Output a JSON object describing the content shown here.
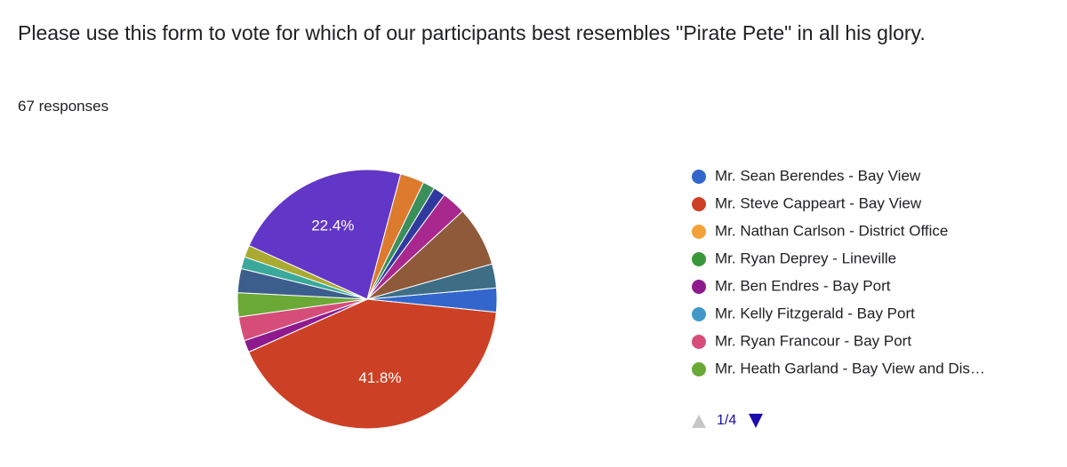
{
  "chart_data": {
    "type": "pie",
    "title": "Please use this form to vote for which of our participants best resembles \"Pirate Pete\" in all his glory.",
    "subtitle": "67 responses",
    "categories": [
      "Mr. Sean Berendes - Bay View",
      "Mr. Steve Cappeart - Bay View",
      "Mr. Nathan Carlson - District Office",
      "Mr. Ryan Deprey - Lineville",
      "Mr. Ben Endres - Bay Port",
      "Mr. Kelly Fitzgerald - Bay Port",
      "Mr. Ryan Francour - Bay Port",
      "Mr. Heath Garland - Bay View and Dis…",
      null,
      null,
      null,
      null,
      null,
      null,
      null,
      null,
      null,
      null
    ],
    "values": [
      3.0,
      41.8,
      0,
      0,
      1.5,
      0,
      3.0,
      3.0,
      3.0,
      1.5,
      1.5,
      22.4,
      3.0,
      1.5,
      1.5,
      3.0,
      7.5,
      3.0
    ],
    "value_labels": [
      null,
      "41.8%",
      null,
      null,
      null,
      null,
      null,
      null,
      null,
      null,
      null,
      "22.4%",
      null,
      null,
      null,
      null,
      null,
      null
    ],
    "colors": [
      "#3366cc",
      "#cc4125",
      "#f4a13a",
      "#3a963a",
      "#8e1a8e",
      "#4299c9",
      "#d64d7a",
      "#6aa935",
      "#3b5e8c",
      "#3aa99b",
      "#aaaa33",
      "#6236c6",
      "#dc7a2e",
      "#3a8f5a",
      "#303a9e",
      "#a8288e",
      "#8f5a3a",
      "#3d6e86"
    ],
    "legend_page": "1/4"
  }
}
